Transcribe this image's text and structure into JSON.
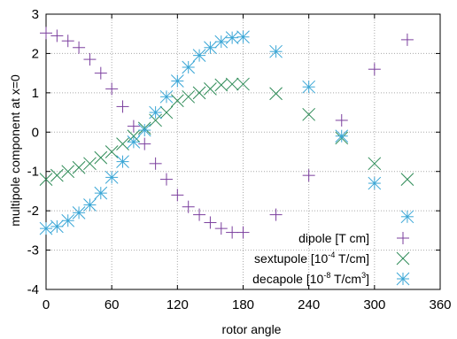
{
  "chart_data": {
    "type": "scatter",
    "title": "",
    "xlabel": "rotor angle",
    "ylabel": "multipole component at x=0",
    "xlim": [
      0,
      360
    ],
    "ylim": [
      -4,
      3
    ],
    "xticks": [
      "0",
      "60",
      "120",
      "180",
      "240",
      "300",
      "360"
    ],
    "yticks": [
      "-4",
      "-3",
      "-2",
      "-1",
      "0",
      "1",
      "2",
      "3"
    ],
    "grid": true,
    "legend_position": "bottom-right",
    "series": [
      {
        "name": "dipole [T cm]",
        "legend": {
          "pre": "dipole [T cm]",
          "sup": "",
          "post": ""
        },
        "marker": "plus",
        "color": "#7b3f9e",
        "points": [
          [
            0,
            2.52
          ],
          [
            10,
            2.45
          ],
          [
            20,
            2.32
          ],
          [
            30,
            2.15
          ],
          [
            40,
            1.85
          ],
          [
            50,
            1.5
          ],
          [
            60,
            1.1
          ],
          [
            70,
            0.65
          ],
          [
            80,
            0.15
          ],
          [
            90,
            -0.3
          ],
          [
            100,
            -0.8
          ],
          [
            110,
            -1.2
          ],
          [
            120,
            -1.6
          ],
          [
            130,
            -1.9
          ],
          [
            140,
            -2.1
          ],
          [
            150,
            -2.3
          ],
          [
            160,
            -2.45
          ],
          [
            170,
            -2.55
          ],
          [
            180,
            -2.55
          ],
          [
            210,
            -2.1
          ],
          [
            240,
            -1.1
          ],
          [
            270,
            0.3
          ],
          [
            300,
            1.6
          ],
          [
            330,
            2.35
          ]
        ]
      },
      {
        "name": "sextupole [10-4 T/cm]",
        "legend": {
          "pre": "sextupole [10",
          "sup": "-4",
          "post": " T/cm]"
        },
        "marker": "x",
        "color": "#2e8b57",
        "points": [
          [
            0,
            -1.2
          ],
          [
            10,
            -1.1
          ],
          [
            20,
            -1.0
          ],
          [
            30,
            -0.9
          ],
          [
            40,
            -0.8
          ],
          [
            50,
            -0.65
          ],
          [
            60,
            -0.5
          ],
          [
            70,
            -0.3
          ],
          [
            80,
            -0.1
          ],
          [
            90,
            0.1
          ],
          [
            100,
            0.3
          ],
          [
            110,
            0.5
          ],
          [
            120,
            0.8
          ],
          [
            130,
            0.9
          ],
          [
            140,
            1.0
          ],
          [
            150,
            1.1
          ],
          [
            160,
            1.2
          ],
          [
            170,
            1.22
          ],
          [
            180,
            1.22
          ],
          [
            210,
            0.98
          ],
          [
            240,
            0.45
          ],
          [
            270,
            -0.15
          ],
          [
            300,
            -0.8
          ],
          [
            330,
            -1.2
          ]
        ]
      },
      {
        "name": "decapole [10-8 T/cm3]",
        "legend": {
          "pre": "decapole [10",
          "sup": "-8",
          "post": " T/cm",
          "sup2": "3",
          "tail": "]"
        },
        "marker": "star",
        "color": "#3aa6d6",
        "points": [
          [
            0,
            -2.45
          ],
          [
            10,
            -2.4
          ],
          [
            20,
            -2.25
          ],
          [
            30,
            -2.05
          ],
          [
            40,
            -1.85
          ],
          [
            50,
            -1.55
          ],
          [
            60,
            -1.15
          ],
          [
            70,
            -0.75
          ],
          [
            80,
            -0.25
          ],
          [
            90,
            0.05
          ],
          [
            100,
            0.5
          ],
          [
            110,
            0.9
          ],
          [
            120,
            1.3
          ],
          [
            130,
            1.65
          ],
          [
            140,
            1.95
          ],
          [
            150,
            2.15
          ],
          [
            160,
            2.3
          ],
          [
            170,
            2.4
          ],
          [
            180,
            2.42
          ],
          [
            210,
            2.05
          ],
          [
            240,
            1.15
          ],
          [
            270,
            -0.1
          ],
          [
            300,
            -1.3
          ],
          [
            330,
            -2.15
          ]
        ]
      }
    ]
  }
}
